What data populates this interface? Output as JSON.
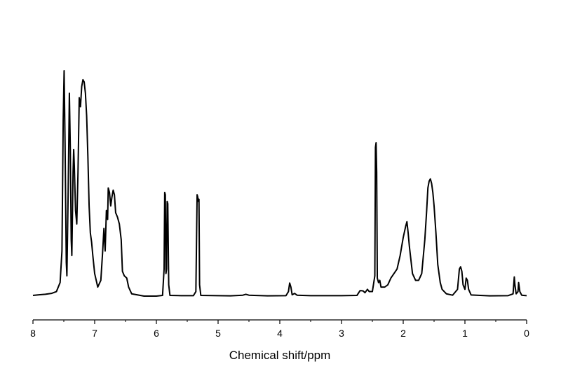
{
  "chart_data": {
    "type": "line",
    "title": "",
    "xlabel": "Chemical shift/ppm",
    "ylabel": "",
    "xlim": [
      8,
      0
    ],
    "x_reversed": true,
    "ylim": [
      0,
      1
    ],
    "y_axis_visible": false,
    "grid": false,
    "legend": "none",
    "line_color": "#000000",
    "xticks": [
      8,
      7,
      6,
      5,
      4,
      3,
      2,
      1,
      0
    ],
    "xtick_labels": [
      "8",
      "7",
      "6",
      "5",
      "4",
      "3",
      "2",
      "1",
      "0"
    ],
    "series": [
      {
        "points": [
          [
            8.0,
            0.003
          ],
          [
            7.9,
            0.006
          ],
          [
            7.8,
            0.008
          ],
          [
            7.7,
            0.012
          ],
          [
            7.62,
            0.02
          ],
          [
            7.56,
            0.06
          ],
          [
            7.53,
            0.2
          ],
          [
            7.51,
            0.78
          ],
          [
            7.495,
            1.0
          ],
          [
            7.48,
            0.68
          ],
          [
            7.46,
            0.15
          ],
          [
            7.45,
            0.09
          ],
          [
            7.43,
            0.45
          ],
          [
            7.41,
            0.9
          ],
          [
            7.395,
            0.66
          ],
          [
            7.38,
            0.25
          ],
          [
            7.37,
            0.18
          ],
          [
            7.35,
            0.55
          ],
          [
            7.34,
            0.65
          ],
          [
            7.33,
            0.58
          ],
          [
            7.31,
            0.38
          ],
          [
            7.29,
            0.32
          ],
          [
            7.27,
            0.55
          ],
          [
            7.25,
            0.88
          ],
          [
            7.23,
            0.84
          ],
          [
            7.21,
            0.93
          ],
          [
            7.19,
            0.96
          ],
          [
            7.17,
            0.95
          ],
          [
            7.15,
            0.9
          ],
          [
            7.13,
            0.8
          ],
          [
            7.11,
            0.62
          ],
          [
            7.09,
            0.4
          ],
          [
            7.07,
            0.28
          ],
          [
            7.05,
            0.24
          ],
          [
            7.03,
            0.18
          ],
          [
            7.0,
            0.1
          ],
          [
            6.95,
            0.04
          ],
          [
            6.9,
            0.07
          ],
          [
            6.87,
            0.2
          ],
          [
            6.85,
            0.3
          ],
          [
            6.83,
            0.2
          ],
          [
            6.81,
            0.38
          ],
          [
            6.79,
            0.34
          ],
          [
            6.78,
            0.48
          ],
          [
            6.76,
            0.46
          ],
          [
            6.74,
            0.4
          ],
          [
            6.72,
            0.44
          ],
          [
            6.7,
            0.47
          ],
          [
            6.68,
            0.45
          ],
          [
            6.66,
            0.37
          ],
          [
            6.63,
            0.35
          ],
          [
            6.6,
            0.32
          ],
          [
            6.57,
            0.25
          ],
          [
            6.55,
            0.11
          ],
          [
            6.52,
            0.09
          ],
          [
            6.48,
            0.08
          ],
          [
            6.45,
            0.04
          ],
          [
            6.4,
            0.01
          ],
          [
            6.2,
            0.0
          ],
          [
            6.0,
            0.0
          ],
          [
            5.9,
            0.003
          ],
          [
            5.875,
            0.12
          ],
          [
            5.865,
            0.46
          ],
          [
            5.855,
            0.45
          ],
          [
            5.845,
            0.1
          ],
          [
            5.835,
            0.12
          ],
          [
            5.825,
            0.42
          ],
          [
            5.815,
            0.41
          ],
          [
            5.8,
            0.05
          ],
          [
            5.78,
            0.003
          ],
          [
            5.6,
            0.002
          ],
          [
            5.4,
            0.002
          ],
          [
            5.36,
            0.02
          ],
          [
            5.34,
            0.45
          ],
          [
            5.33,
            0.44
          ],
          [
            5.32,
            0.42
          ],
          [
            5.31,
            0.43
          ],
          [
            5.3,
            0.05
          ],
          [
            5.28,
            0.003
          ],
          [
            5.0,
            0.002
          ],
          [
            4.8,
            0.001
          ],
          [
            4.6,
            0.004
          ],
          [
            4.55,
            0.008
          ],
          [
            4.5,
            0.004
          ],
          [
            4.2,
            0.001
          ],
          [
            3.9,
            0.002
          ],
          [
            3.86,
            0.02
          ],
          [
            3.84,
            0.058
          ],
          [
            3.82,
            0.04
          ],
          [
            3.8,
            0.006
          ],
          [
            3.76,
            0.012
          ],
          [
            3.72,
            0.004
          ],
          [
            3.5,
            0.002
          ],
          [
            3.0,
            0.002
          ],
          [
            2.75,
            0.003
          ],
          [
            2.7,
            0.024
          ],
          [
            2.68,
            0.024
          ],
          [
            2.65,
            0.023
          ],
          [
            2.62,
            0.015
          ],
          [
            2.58,
            0.03
          ],
          [
            2.55,
            0.02
          ],
          [
            2.5,
            0.02
          ],
          [
            2.46,
            0.09
          ],
          [
            2.45,
            0.66
          ],
          [
            2.44,
            0.68
          ],
          [
            2.43,
            0.55
          ],
          [
            2.42,
            0.08
          ],
          [
            2.4,
            0.06
          ],
          [
            2.38,
            0.07
          ],
          [
            2.36,
            0.04
          ],
          [
            2.3,
            0.04
          ],
          [
            2.25,
            0.05
          ],
          [
            2.2,
            0.08
          ],
          [
            2.15,
            0.1
          ],
          [
            2.1,
            0.12
          ],
          [
            2.05,
            0.18
          ],
          [
            2.0,
            0.26
          ],
          [
            1.96,
            0.31
          ],
          [
            1.94,
            0.33
          ],
          [
            1.92,
            0.28
          ],
          [
            1.9,
            0.22
          ],
          [
            1.85,
            0.1
          ],
          [
            1.8,
            0.07
          ],
          [
            1.75,
            0.07
          ],
          [
            1.7,
            0.1
          ],
          [
            1.65,
            0.25
          ],
          [
            1.62,
            0.38
          ],
          [
            1.6,
            0.48
          ],
          [
            1.58,
            0.51
          ],
          [
            1.56,
            0.52
          ],
          [
            1.54,
            0.5
          ],
          [
            1.52,
            0.46
          ],
          [
            1.5,
            0.4
          ],
          [
            1.47,
            0.28
          ],
          [
            1.44,
            0.14
          ],
          [
            1.4,
            0.06
          ],
          [
            1.37,
            0.03
          ],
          [
            1.3,
            0.01
          ],
          [
            1.2,
            0.004
          ],
          [
            1.12,
            0.03
          ],
          [
            1.09,
            0.12
          ],
          [
            1.07,
            0.13
          ],
          [
            1.05,
            0.11
          ],
          [
            1.03,
            0.05
          ],
          [
            1.0,
            0.03
          ],
          [
            0.98,
            0.08
          ],
          [
            0.96,
            0.07
          ],
          [
            0.94,
            0.03
          ],
          [
            0.9,
            0.005
          ],
          [
            0.6,
            0.001
          ],
          [
            0.3,
            0.002
          ],
          [
            0.22,
            0.01
          ],
          [
            0.2,
            0.085
          ],
          [
            0.19,
            0.05
          ],
          [
            0.17,
            0.01
          ],
          [
            0.14,
            0.02
          ],
          [
            0.13,
            0.06
          ],
          [
            0.11,
            0.02
          ],
          [
            0.08,
            0.004
          ],
          [
            0.0,
            0.002
          ]
        ]
      }
    ]
  }
}
